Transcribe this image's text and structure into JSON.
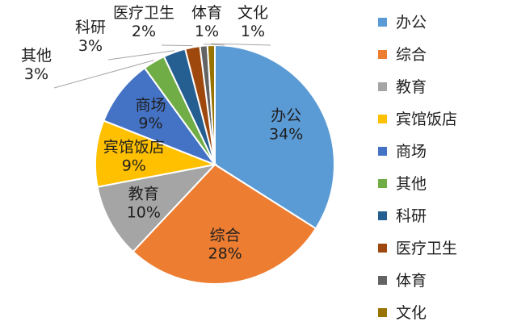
{
  "chart_data": {
    "type": "pie",
    "title": "",
    "legend_position": "right",
    "slices": [
      {
        "label": "办公",
        "value": 34,
        "value_label": "34%",
        "color": "#5b9bd5"
      },
      {
        "label": "综合",
        "value": 28,
        "value_label": "28%",
        "color": "#ed7d31"
      },
      {
        "label": "教育",
        "value": 10,
        "value_label": "10%",
        "color": "#a5a5a5"
      },
      {
        "label": "宾馆饭店",
        "value": 9,
        "value_label": "9%",
        "color": "#ffc000"
      },
      {
        "label": "商场",
        "value": 9,
        "value_label": "9%",
        "color": "#4472c4"
      },
      {
        "label": "其他",
        "value": 3,
        "value_label": "3%",
        "color": "#70ad47"
      },
      {
        "label": "科研",
        "value": 3,
        "value_label": "3%",
        "color": "#255e91"
      },
      {
        "label": "医疗卫生",
        "value": 2,
        "value_label": "2%",
        "color": "#9e480e"
      },
      {
        "label": "体育",
        "value": 1,
        "value_label": "1%",
        "color": "#636363"
      },
      {
        "label": "文化",
        "value": 1,
        "value_label": "1%",
        "color": "#997300"
      }
    ]
  }
}
